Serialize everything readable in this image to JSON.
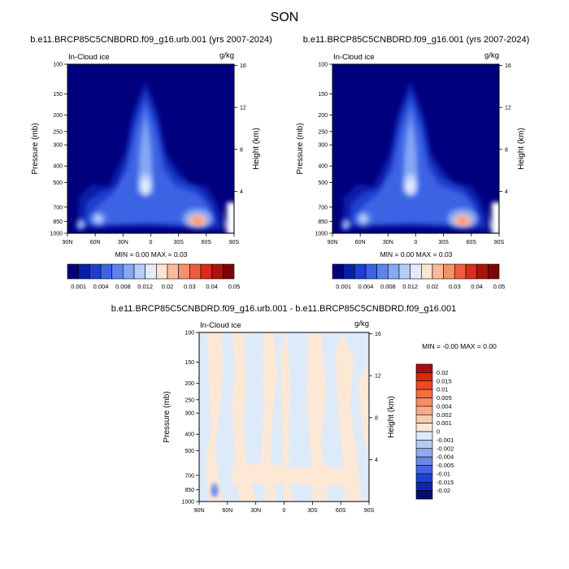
{
  "page_title": "SON",
  "panels": [
    {
      "title": "b.e11.BRCP85C5CNBDRD.f09_g16.urb.001 (yrs 2007-2024)",
      "left_label": "In-Cloud ice",
      "right_label": "g/kg",
      "min_max": "MIN =   0.00  MAX =   0.03"
    },
    {
      "title": "b.e11.BRCP85C5CNBDRD.f09_g16.001 (yrs 2007-2024)",
      "left_label": "In-Cloud ice",
      "right_label": "g/kg",
      "min_max": "MIN =   0.00  MAX =   0.03"
    },
    {
      "title": "b.e11.BRCP85C5CNBDRD.f09_g16.urb.001 - b.e11.BRCP85C5CNBDRD.f09_g16.001",
      "left_label": "In-Cloud ice",
      "right_label": "g/kg",
      "min_max": "MIN =  -0.00  MAX =   0.00"
    }
  ],
  "chart_data": [
    {
      "type": "heatmap",
      "title": "b.e11.BRCP85C5CNBDRD.f09_g16.urb.001 (yrs 2007-2024)",
      "variable": "In-Cloud ice",
      "units": "g/kg",
      "xlabel": "",
      "ylabel": "Pressure (mb)",
      "y2label": "Height (km)",
      "x_ticks": [
        "90N",
        "60N",
        "30N",
        "0",
        "30S",
        "60S",
        "90S"
      ],
      "y_ticks": [
        100,
        150,
        200,
        250,
        300,
        400,
        500,
        700,
        850,
        1000
      ],
      "y2_ticks": [
        4,
        8,
        12,
        16
      ],
      "y_scale": "log",
      "min": 0.0,
      "max": 0.03,
      "colorbar_levels": [
        "0.001",
        "0.004",
        "0.008",
        "0.012",
        "0.02",
        "0.03",
        "0.04",
        "0.05"
      ],
      "colorbar_colors": [
        "#00007f",
        "#0a1fa8",
        "#1d3fd0",
        "#3d63e5",
        "#5b85ee",
        "#86a8f5",
        "#b5ccfa",
        "#e2ecfd",
        "#fde3d1",
        "#fbbb9b",
        "#f78f6c",
        "#ef5d3c",
        "#d92c1b",
        "#ad130c",
        "#7e0303"
      ]
    },
    {
      "type": "heatmap",
      "title": "b.e11.BRCP85C5CNBDRD.f09_g16.001 (yrs 2007-2024)",
      "variable": "In-Cloud ice",
      "units": "g/kg",
      "xlabel": "",
      "ylabel": "Pressure (mb)",
      "y2label": "Height (km)",
      "x_ticks": [
        "90N",
        "60N",
        "30N",
        "0",
        "30S",
        "60S",
        "90S"
      ],
      "y_ticks": [
        100,
        150,
        200,
        250,
        300,
        400,
        500,
        700,
        850,
        1000
      ],
      "y2_ticks": [
        4,
        8,
        12,
        16
      ],
      "y_scale": "log",
      "min": 0.0,
      "max": 0.03,
      "colorbar_levels": [
        "0.001",
        "0.004",
        "0.008",
        "0.012",
        "0.02",
        "0.03",
        "0.04",
        "0.05"
      ],
      "colorbar_colors": [
        "#00007f",
        "#0a1fa8",
        "#1d3fd0",
        "#3d63e5",
        "#5b85ee",
        "#86a8f5",
        "#b5ccfa",
        "#e2ecfd",
        "#fde3d1",
        "#fbbb9b",
        "#f78f6c",
        "#ef5d3c",
        "#d92c1b",
        "#ad130c",
        "#7e0303"
      ]
    },
    {
      "type": "heatmap",
      "title": "b.e11.BRCP85C5CNBDRD.f09_g16.urb.001 - b.e11.BRCP85C5CNBDRD.f09_g16.001",
      "variable": "In-Cloud ice",
      "units": "g/kg",
      "xlabel": "",
      "ylabel": "Pressure (mb)",
      "y2label": "Height (km)",
      "x_ticks": [
        "90N",
        "60N",
        "30N",
        "0",
        "30S",
        "60S",
        "90S"
      ],
      "y_ticks": [
        100,
        150,
        200,
        250,
        300,
        400,
        500,
        700,
        850,
        1000
      ],
      "y2_ticks": [
        4,
        8,
        12,
        16
      ],
      "y_scale": "log",
      "min": -0.0,
      "max": 0.0,
      "colorbar_levels": [
        "0.02",
        "0.015",
        "0.01",
        "0.005",
        "0.004",
        "0.002",
        "0.001",
        "0",
        "-0.001",
        "-0.002",
        "-0.004",
        "-0.005",
        "-0.01",
        "-0.015",
        "-0.02"
      ],
      "colorbar_colors": [
        "#a50f0f",
        "#d42a10",
        "#ef4a1c",
        "#f46e3e",
        "#f78d63",
        "#f9ab8a",
        "#fbcbb0",
        "#fde8d6",
        "#dceafa",
        "#b7cbf3",
        "#91a9ee",
        "#6b87ea",
        "#4564e3",
        "#2140d3",
        "#0f24a8",
        "#040c6e"
      ]
    }
  ],
  "colors": {
    "background": "#00007f",
    "diff_positive": "#fde8d6",
    "diff_negative": "#dceafa"
  }
}
